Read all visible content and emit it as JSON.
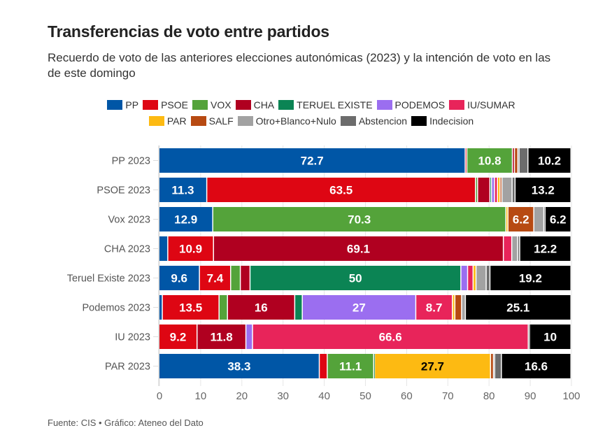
{
  "title": "Transferencias de voto entre partidos",
  "subtitle": "Recuerdo de voto de las anteriores elecciones autonómicas (2023) y la intención de voto en las de este domingo",
  "footer": "Fuente: CIS • Gráfico: Ateneo del Dato",
  "chart_data": {
    "type": "bar",
    "orientation": "horizontal",
    "stacked": true,
    "title": "Transferencias de voto entre partidos",
    "subtitle": "Recuerdo de voto de las anteriores elecciones autonómicas (2023) y la intención de voto en las de este domingo",
    "xlabel": "",
    "ylabel": "",
    "xlim": [
      0,
      100
    ],
    "xticks": [
      0,
      10,
      20,
      30,
      40,
      50,
      60,
      70,
      80,
      90,
      100
    ],
    "grid": true,
    "legend_position": "top",
    "label_threshold": 5,
    "categories": [
      "PP 2023",
      "PSOE 2023",
      "Vox 2023",
      "CHA 2023",
      "Teruel Existe 2023",
      "Podemos 2023",
      "IU 2023",
      "PAR 2023"
    ],
    "series": [
      {
        "name": "PP",
        "color": "#0056A6",
        "values": [
          72.7,
          11.3,
          12.9,
          2.1,
          9.6,
          0.8,
          0,
          38.3
        ]
      },
      {
        "name": "PSOE",
        "color": "#DE0613",
        "values": [
          0.4,
          63.5,
          0,
          10.9,
          7.4,
          13.5,
          9.2,
          1.9
        ]
      },
      {
        "name": "VOX",
        "color": "#54A33A",
        "values": [
          10.8,
          0.5,
          70.3,
          0,
          2.3,
          2.0,
          0,
          11.1
        ]
      },
      {
        "name": "CHA",
        "color": "#B00020",
        "values": [
          0.5,
          2.9,
          0,
          69.1,
          2.3,
          16,
          11.8,
          0
        ]
      },
      {
        "name": "TERUEL EXISTE",
        "color": "#0B8454",
        "values": [
          0,
          0.4,
          0,
          0,
          50,
          1.8,
          0,
          0.2
        ]
      },
      {
        "name": "PODEMOS",
        "color": "#9B6EF0",
        "values": [
          0,
          0.7,
          0,
          0,
          1.6,
          27,
          1.6,
          0
        ]
      },
      {
        "name": "IU/SUMAR",
        "color": "#E8245A",
        "values": [
          0,
          0.7,
          0,
          2.0,
          1.3,
          8.7,
          66.6,
          0
        ]
      },
      {
        "name": "PAR",
        "color": "#FDBA12",
        "values": [
          0,
          0.6,
          0.5,
          0,
          0.7,
          0.6,
          0,
          27.7
        ]
      },
      {
        "name": "SALF",
        "color": "#B74A12",
        "values": [
          0.8,
          0.45,
          6.2,
          0,
          0,
          1.6,
          0,
          0.7
        ]
      },
      {
        "name": "Otro+Blanco+Nulo",
        "color": "#A2A2A2",
        "values": [
          0.3,
          2.4,
          2.4,
          1.4,
          2.4,
          0.9,
          0,
          0.3
        ]
      },
      {
        "name": "Abstencion",
        "color": "#6C6C6C",
        "values": [
          2.1,
          0.7,
          0.3,
          0.5,
          0.9,
          0,
          0.3,
          1.6
        ]
      },
      {
        "name": "Indecision",
        "color": "#000000",
        "values": [
          10.2,
          13.2,
          6.2,
          12.2,
          19.2,
          25.1,
          10,
          16.6
        ]
      }
    ],
    "data_labels": {
      "PP 2023": {
        "PP": "72.7",
        "VOX": "10.8",
        "Indecision": "10.2"
      },
      "PSOE 2023": {
        "PP": "11.3",
        "PSOE": "63.5",
        "Indecision": "13.2"
      },
      "Vox 2023": {
        "PP": "12.9",
        "VOX": "70.3",
        "SALF": "6.2",
        "Indecision": "6.2"
      },
      "CHA 2023": {
        "PSOE": "10.9",
        "CHA": "69.1",
        "Indecision": "12.2"
      },
      "Teruel Existe 2023": {
        "PP": "9.6",
        "PSOE": "7.4",
        "TERUEL EXISTE": "50",
        "Indecision": "19.2"
      },
      "Podemos 2023": {
        "PSOE": "13.5",
        "CHA": "16",
        "PODEMOS": "27",
        "IU/SUMAR": "8.7",
        "Indecision": "25.1"
      },
      "IU 2023": {
        "PSOE": "9.2",
        "CHA": "11.8",
        "IU/SUMAR": "66.6",
        "Indecision": "10"
      },
      "PAR 2023": {
        "PP": "38.3",
        "VOX": "11.1",
        "PAR": "27.7",
        "Indecision": "16.6"
      }
    }
  }
}
